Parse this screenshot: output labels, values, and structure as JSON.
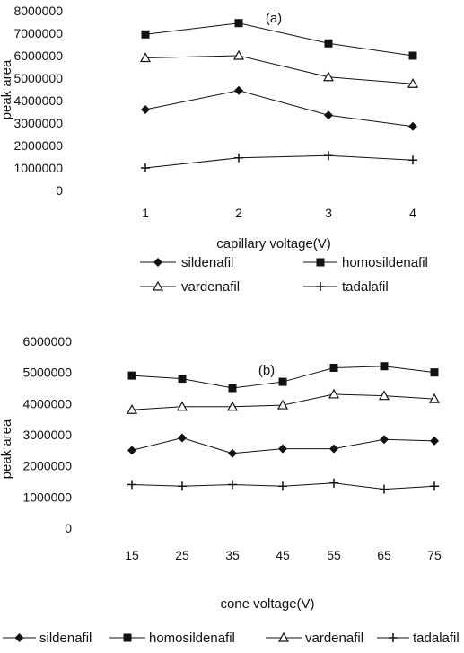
{
  "chart_data": [
    {
      "type": "line",
      "title": "(a)",
      "xlabel": "capillary voltage(V)",
      "ylabel": "peak area",
      "categories": [
        "1",
        "2",
        "3",
        "4"
      ],
      "ylim": [
        0,
        8000000
      ],
      "yticks": [
        "8000000",
        "7000000",
        "6000000",
        "5000000",
        "4000000",
        "3000000",
        "2000000",
        "1000000",
        "0"
      ],
      "grid": false,
      "legend_position": "bottom",
      "series": [
        {
          "name": "sildenafil",
          "marker": "diamond",
          "values": [
            3600000,
            4450000,
            3350000,
            2850000
          ]
        },
        {
          "name": "homosildenafil",
          "marker": "square",
          "values": [
            6950000,
            7450000,
            6550000,
            6000000
          ]
        },
        {
          "name": "vardenafil",
          "marker": "triangle",
          "values": [
            5900000,
            6000000,
            5050000,
            4750000
          ]
        },
        {
          "name": "tadalafil",
          "marker": "plus",
          "values": [
            1000000,
            1450000,
            1550000,
            1350000
          ]
        }
      ]
    },
    {
      "type": "line",
      "title": "(b)",
      "xlabel": "cone voltage(V)",
      "ylabel": "peak area",
      "categories": [
        "15",
        "25",
        "35",
        "45",
        "55",
        "65",
        "75"
      ],
      "ylim": [
        0,
        6000000
      ],
      "yticks": [
        "6000000",
        "5000000",
        "4000000",
        "3000000",
        "2000000",
        "1000000",
        "0"
      ],
      "grid": false,
      "legend_position": "bottom",
      "series": [
        {
          "name": "sildenafil",
          "marker": "diamond",
          "values": [
            2500000,
            2900000,
            2400000,
            2550000,
            2550000,
            2850000,
            2800000
          ]
        },
        {
          "name": "homosildenafil",
          "marker": "square",
          "values": [
            4900000,
            4800000,
            4500000,
            4700000,
            5150000,
            5200000,
            5000000
          ]
        },
        {
          "name": "vardenafil",
          "marker": "triangle",
          "values": [
            3800000,
            3900000,
            3900000,
            3950000,
            4300000,
            4250000,
            4150000
          ]
        },
        {
          "name": "tadalafil",
          "marker": "plus",
          "values": [
            1400000,
            1350000,
            1400000,
            1350000,
            1450000,
            1250000,
            1350000
          ]
        }
      ]
    }
  ]
}
